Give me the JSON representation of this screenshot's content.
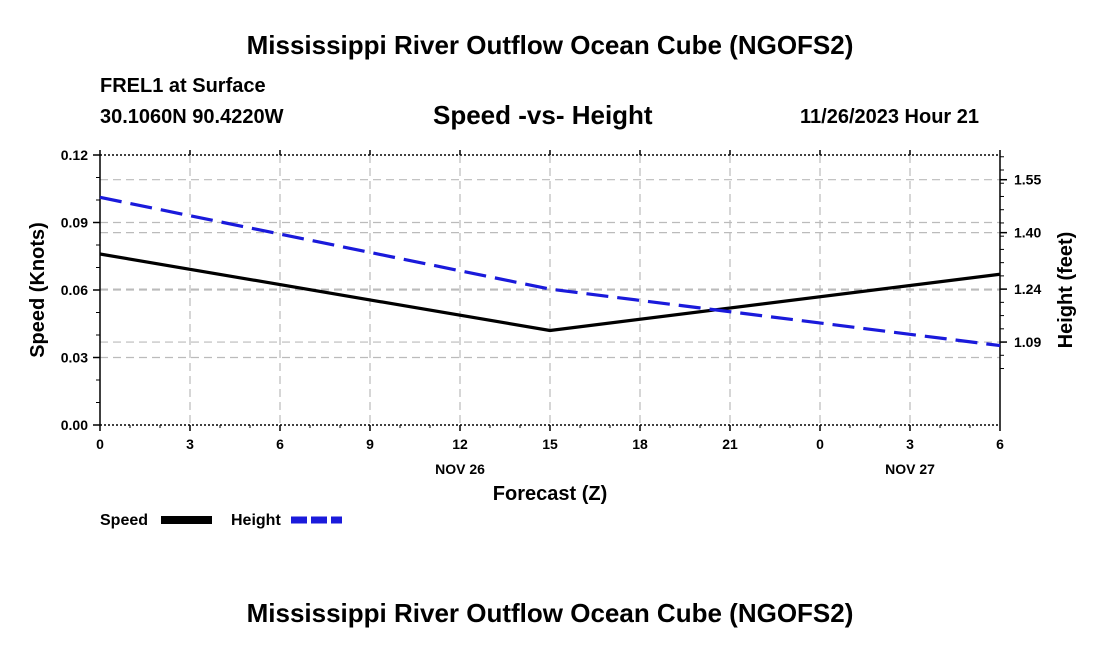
{
  "header": {
    "title": "Mississippi River Outflow Ocean Cube (NGOFS2)",
    "station": "FREL1 at Surface",
    "coords": "30.1060N  90.4220W",
    "subtitle": "Speed -vs- Height",
    "datetime": "11/26/2023 Hour 21"
  },
  "footer": {
    "title": "Mississippi River Outflow Ocean Cube (NGOFS2)"
  },
  "colors": {
    "speed": "#000000",
    "height": "#1a1adb",
    "grid": "#bbbbbb"
  },
  "chart_data": {
    "type": "line",
    "title": "Speed -vs- Height",
    "xlabel": "Forecast (Z)",
    "ylabel": "Speed (Knots)",
    "y2label": "Height (feet)",
    "x_hours": [
      0,
      3,
      6,
      9,
      12,
      15,
      18,
      21,
      24,
      27,
      30
    ],
    "x_tick_labels": [
      "0",
      "3",
      "6",
      "9",
      "12",
      "15",
      "18",
      "21",
      "0",
      "3",
      "6"
    ],
    "x_date_labels": [
      {
        "hour": 12,
        "label": "NOV 26"
      },
      {
        "hour": 27,
        "label": "NOV 27"
      }
    ],
    "xlim": [
      0,
      30
    ],
    "ylim": [
      0,
      0.12
    ],
    "y_ticks": [
      "0.00",
      "0.03",
      "0.06",
      "0.09",
      "0.12"
    ],
    "y2lim": [
      0.855,
      1.62
    ],
    "y2_ticks": [
      "1.09",
      "1.24",
      "1.40",
      "1.55"
    ],
    "grid": true,
    "legend_position": "bottom-left",
    "series": [
      {
        "name": "Speed",
        "axis": "left",
        "style": "solid",
        "x": [
          0,
          15,
          30
        ],
        "values": [
          0.076,
          0.042,
          0.067
        ]
      },
      {
        "name": "Height",
        "axis": "right",
        "style": "dashed",
        "x": [
          0,
          15,
          30
        ],
        "values": [
          1.5,
          1.24,
          1.08
        ]
      }
    ]
  }
}
